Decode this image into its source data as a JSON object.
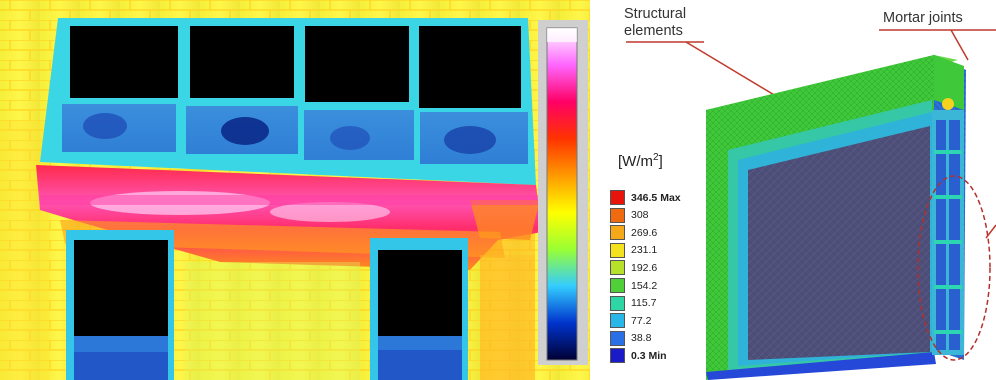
{
  "thermal_image": {
    "scale_colors": [
      "#ffffff",
      "#ff66ff",
      "#ff0066",
      "#ff3300",
      "#ff9900",
      "#ffff00",
      "#99ff33",
      "#33ccff",
      "#0033cc",
      "#000033"
    ]
  },
  "fem_model": {
    "callouts": {
      "structural_line1": "Structural",
      "structural_line2": "elements",
      "mortar": "Mortar joints"
    },
    "legend": {
      "unit_prefix": "[W/m",
      "unit_sup": "2",
      "unit_suffix": "]",
      "items": [
        {
          "label": "346.5 Max",
          "color": "#e8140c",
          "bold": true
        },
        {
          "label": "308",
          "color": "#f06a10",
          "bold": false
        },
        {
          "label": "269.6",
          "color": "#f5a81a",
          "bold": false
        },
        {
          "label": "231.1",
          "color": "#f4e21e",
          "bold": false
        },
        {
          "label": "192.6",
          "color": "#b6e02a",
          "bold": false
        },
        {
          "label": "154.2",
          "color": "#4fcf38",
          "bold": false
        },
        {
          "label": "115.7",
          "color": "#2ed6a6",
          "bold": false
        },
        {
          "label": "77.2",
          "color": "#29b7e8",
          "bold": false
        },
        {
          "label": "38.8",
          "color": "#2a6fe6",
          "bold": false
        },
        {
          "label": "0.3 Min",
          "color": "#1a1ac8",
          "bold": true
        }
      ]
    }
  }
}
